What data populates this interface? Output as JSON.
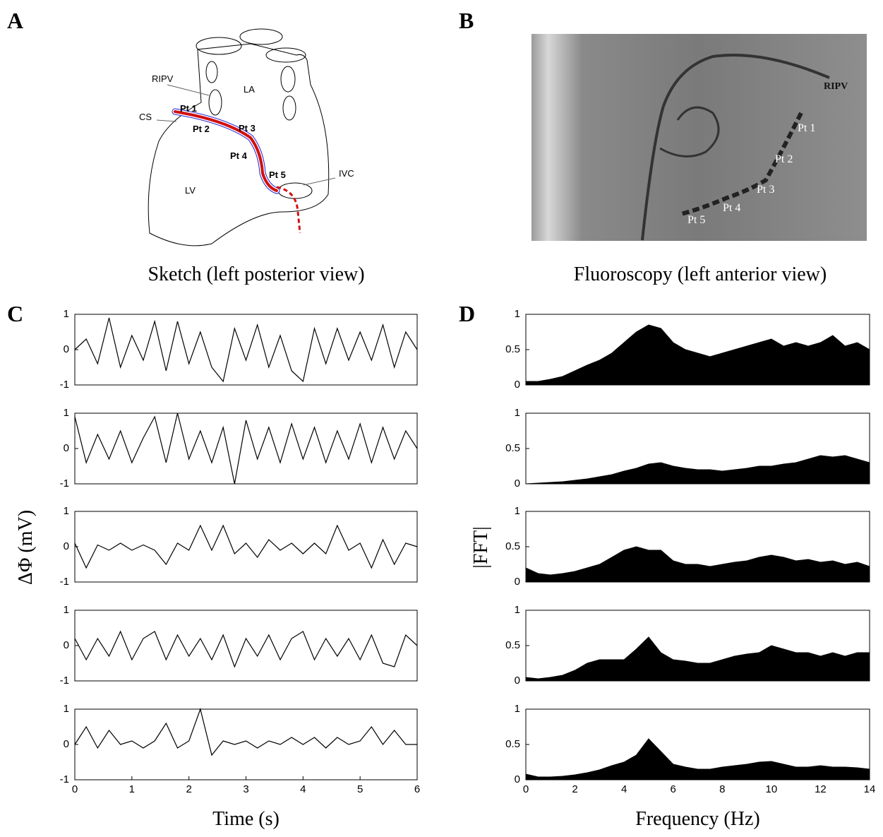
{
  "figure": {
    "panel_labels": [
      "A",
      "B",
      "C",
      "D"
    ],
    "sketch": {
      "caption": "Sketch (left posterior view)",
      "labels": [
        "RIPV",
        "LA",
        "CS",
        "Pt 1",
        "Pt 2",
        "Pt 3",
        "Pt 4",
        "Pt 5",
        "LV",
        "IVC"
      ]
    },
    "fluoroscopy": {
      "caption": "Fluoroscopy (left anterior view)",
      "labels": [
        "RIPV",
        "Pt 1",
        "Pt 2",
        "Pt 3",
        "Pt 4",
        "Pt 5"
      ]
    }
  },
  "chart_data": [
    {
      "type": "line",
      "x": [
        0,
        0.2,
        0.4,
        0.6,
        0.8,
        1,
        1.2,
        1.4,
        1.6,
        1.8,
        2,
        2.2,
        2.4,
        2.6,
        2.8,
        3,
        3.2,
        3.4,
        3.6,
        3.8,
        4,
        4.2,
        4.4,
        4.6,
        4.8,
        5,
        5.2,
        5.4,
        5.6,
        5.8,
        6
      ],
      "series": [
        {
          "color": "#000000",
          "values": [
            0,
            0.3,
            -0.4,
            0.9,
            -0.5,
            0.4,
            -0.3,
            0.8,
            -0.6,
            0.8,
            -0.4,
            0.5,
            -0.5,
            -0.9,
            0.6,
            -0.3,
            0.7,
            -0.5,
            0.4,
            -0.6,
            -0.9,
            0.6,
            -0.4,
            0.6,
            -0.3,
            0.5,
            -0.3,
            0.7,
            -0.5,
            0.5,
            0
          ]
        }
      ],
      "xlim": [
        0,
        6
      ],
      "ylim": [
        -1,
        1
      ],
      "yticks": [
        -1,
        0,
        1
      ]
    },
    {
      "type": "line",
      "x": [
        0,
        0.2,
        0.4,
        0.6,
        0.8,
        1,
        1.2,
        1.4,
        1.6,
        1.8,
        2,
        2.2,
        2.4,
        2.6,
        2.8,
        3,
        3.2,
        3.4,
        3.6,
        3.8,
        4,
        4.2,
        4.4,
        4.6,
        4.8,
        5,
        5.2,
        5.4,
        5.6,
        5.8,
        6
      ],
      "series": [
        {
          "color": "#000000",
          "values": [
            0.9,
            -0.4,
            0.4,
            -0.3,
            0.5,
            -0.4,
            0.3,
            0.9,
            -0.4,
            1,
            -0.3,
            0.5,
            -0.4,
            0.6,
            -1,
            0.8,
            -0.3,
            0.6,
            -0.4,
            0.7,
            -0.3,
            0.6,
            -0.4,
            0.5,
            -0.3,
            0.7,
            -0.4,
            0.6,
            -0.3,
            0.5,
            0
          ]
        }
      ],
      "xlim": [
        0,
        6
      ],
      "ylim": [
        -1,
        1
      ],
      "yticks": [
        -1,
        0,
        1
      ]
    },
    {
      "type": "line",
      "x": [
        0,
        0.2,
        0.4,
        0.6,
        0.8,
        1,
        1.2,
        1.4,
        1.6,
        1.8,
        2,
        2.2,
        2.4,
        2.6,
        2.8,
        3,
        3.2,
        3.4,
        3.6,
        3.8,
        4,
        4.2,
        4.4,
        4.6,
        4.8,
        5,
        5.2,
        5.4,
        5.6,
        5.8,
        6
      ],
      "series": [
        {
          "color": "#000000",
          "values": [
            0.1,
            -0.6,
            0.05,
            -0.1,
            0.1,
            -0.1,
            0.05,
            -0.1,
            -0.5,
            0.1,
            -0.1,
            0.6,
            -0.1,
            0.6,
            -0.2,
            0.1,
            -0.3,
            0.2,
            -0.1,
            0.1,
            -0.2,
            0.1,
            -0.2,
            0.6,
            -0.1,
            0.1,
            -0.6,
            0.2,
            -0.5,
            0.1,
            0
          ]
        }
      ],
      "xlim": [
        0,
        6
      ],
      "ylim": [
        -1,
        1
      ],
      "yticks": [
        -1,
        0,
        1
      ]
    },
    {
      "type": "line",
      "x": [
        0,
        0.2,
        0.4,
        0.6,
        0.8,
        1,
        1.2,
        1.4,
        1.6,
        1.8,
        2,
        2.2,
        2.4,
        2.6,
        2.8,
        3,
        3.2,
        3.4,
        3.6,
        3.8,
        4,
        4.2,
        4.4,
        4.6,
        4.8,
        5,
        5.2,
        5.4,
        5.6,
        5.8,
        6
      ],
      "series": [
        {
          "color": "#000000",
          "values": [
            0.2,
            -0.4,
            0.2,
            -0.3,
            0.4,
            -0.4,
            0.2,
            0.4,
            -0.4,
            0.3,
            -0.3,
            0.2,
            -0.4,
            0.3,
            -0.6,
            0.2,
            -0.3,
            0.3,
            -0.4,
            0.2,
            0.4,
            -0.4,
            0.2,
            -0.3,
            0.2,
            -0.4,
            0.3,
            -0.5,
            -0.6,
            0.3,
            0
          ]
        }
      ],
      "xlim": [
        0,
        6
      ],
      "ylim": [
        -1,
        1
      ],
      "yticks": [
        -1,
        0,
        1
      ]
    },
    {
      "type": "line",
      "x": [
        0,
        0.2,
        0.4,
        0.6,
        0.8,
        1,
        1.2,
        1.4,
        1.6,
        1.8,
        2,
        2.2,
        2.4,
        2.6,
        2.8,
        3,
        3.2,
        3.4,
        3.6,
        3.8,
        4,
        4.2,
        4.4,
        4.6,
        4.8,
        5,
        5.2,
        5.4,
        5.6,
        5.8,
        6
      ],
      "series": [
        {
          "color": "#000000",
          "values": [
            0,
            0.5,
            -0.1,
            0.4,
            0,
            0.1,
            -0.1,
            0.1,
            0.6,
            -0.1,
            0.1,
            1,
            -0.3,
            0.1,
            0,
            0.1,
            -0.1,
            0.1,
            0,
            0.2,
            0,
            0.2,
            -0.1,
            0.2,
            0,
            0.1,
            0.5,
            0,
            0.4,
            0,
            0
          ]
        }
      ],
      "xlim": [
        0,
        6
      ],
      "ylim": [
        -1,
        1
      ],
      "yticks": [
        -1,
        0,
        1
      ],
      "xticks": [
        0,
        1,
        2,
        3,
        4,
        5,
        6
      ],
      "xlabel": "Time (s)"
    },
    {
      "type": "area",
      "x": [
        0,
        0.5,
        1,
        1.5,
        2,
        2.5,
        3,
        3.5,
        4,
        4.5,
        5,
        5.5,
        6,
        6.5,
        7,
        7.5,
        8,
        8.5,
        9,
        9.5,
        10,
        10.5,
        11,
        11.5,
        12,
        12.5,
        13,
        13.5,
        14
      ],
      "series": [
        {
          "color": "#000000",
          "values": [
            0.05,
            0.05,
            0.08,
            0.12,
            0.2,
            0.28,
            0.35,
            0.45,
            0.6,
            0.75,
            0.85,
            0.8,
            0.6,
            0.5,
            0.45,
            0.4,
            0.45,
            0.5,
            0.55,
            0.6,
            0.65,
            0.55,
            0.6,
            0.55,
            0.6,
            0.7,
            0.55,
            0.6,
            0.5
          ]
        }
      ],
      "xlim": [
        0,
        14
      ],
      "ylim": [
        0,
        1
      ],
      "yticks": [
        0,
        0.5,
        1
      ]
    },
    {
      "type": "area",
      "x": [
        0,
        0.5,
        1,
        1.5,
        2,
        2.5,
        3,
        3.5,
        4,
        4.5,
        5,
        5.5,
        6,
        6.5,
        7,
        7.5,
        8,
        8.5,
        9,
        9.5,
        10,
        10.5,
        11,
        11.5,
        12,
        12.5,
        13,
        13.5,
        14
      ],
      "series": [
        {
          "color": "#000000",
          "values": [
            0,
            0.01,
            0.02,
            0.03,
            0.05,
            0.07,
            0.1,
            0.13,
            0.18,
            0.22,
            0.28,
            0.3,
            0.25,
            0.22,
            0.2,
            0.2,
            0.18,
            0.2,
            0.22,
            0.25,
            0.25,
            0.28,
            0.3,
            0.35,
            0.4,
            0.38,
            0.4,
            0.35,
            0.3
          ]
        }
      ],
      "xlim": [
        0,
        14
      ],
      "ylim": [
        0,
        1
      ],
      "yticks": [
        0,
        0.5,
        1
      ]
    },
    {
      "type": "area",
      "x": [
        0,
        0.5,
        1,
        1.5,
        2,
        2.5,
        3,
        3.5,
        4,
        4.5,
        5,
        5.5,
        6,
        6.5,
        7,
        7.5,
        8,
        8.5,
        9,
        9.5,
        10,
        10.5,
        11,
        11.5,
        12,
        12.5,
        13,
        13.5,
        14
      ],
      "series": [
        {
          "color": "#000000",
          "values": [
            0.2,
            0.12,
            0.1,
            0.12,
            0.15,
            0.2,
            0.25,
            0.35,
            0.45,
            0.5,
            0.45,
            0.45,
            0.3,
            0.25,
            0.25,
            0.22,
            0.25,
            0.28,
            0.3,
            0.35,
            0.38,
            0.35,
            0.3,
            0.32,
            0.28,
            0.3,
            0.25,
            0.28,
            0.22
          ]
        }
      ],
      "xlim": [
        0,
        14
      ],
      "ylim": [
        0,
        1
      ],
      "yticks": [
        0,
        0.5,
        1
      ]
    },
    {
      "type": "area",
      "x": [
        0,
        0.5,
        1,
        1.5,
        2,
        2.5,
        3,
        3.5,
        4,
        4.5,
        5,
        5.5,
        6,
        6.5,
        7,
        7.5,
        8,
        8.5,
        9,
        9.5,
        10,
        10.5,
        11,
        11.5,
        12,
        12.5,
        13,
        13.5,
        14
      ],
      "series": [
        {
          "color": "#000000",
          "values": [
            0.05,
            0.03,
            0.05,
            0.08,
            0.15,
            0.25,
            0.3,
            0.3,
            0.3,
            0.45,
            0.62,
            0.4,
            0.3,
            0.28,
            0.25,
            0.25,
            0.3,
            0.35,
            0.38,
            0.4,
            0.5,
            0.45,
            0.4,
            0.4,
            0.35,
            0.4,
            0.35,
            0.4,
            0.4
          ]
        }
      ],
      "xlim": [
        0,
        14
      ],
      "ylim": [
        0,
        1
      ],
      "yticks": [
        0,
        0.5,
        1
      ]
    },
    {
      "type": "area",
      "x": [
        0,
        0.5,
        1,
        1.5,
        2,
        2.5,
        3,
        3.5,
        4,
        4.5,
        5,
        5.5,
        6,
        6.5,
        7,
        7.5,
        8,
        8.5,
        9,
        9.5,
        10,
        10.5,
        11,
        11.5,
        12,
        12.5,
        13,
        13.5,
        14
      ],
      "series": [
        {
          "color": "#000000",
          "values": [
            0.08,
            0.04,
            0.04,
            0.05,
            0.07,
            0.1,
            0.14,
            0.2,
            0.25,
            0.35,
            0.58,
            0.4,
            0.22,
            0.18,
            0.15,
            0.15,
            0.18,
            0.2,
            0.22,
            0.25,
            0.26,
            0.22,
            0.18,
            0.18,
            0.2,
            0.18,
            0.18,
            0.17,
            0.15
          ]
        }
      ],
      "xlim": [
        0,
        14
      ],
      "ylim": [
        0,
        1
      ],
      "yticks": [
        0,
        0.5,
        1
      ],
      "xticks": [
        0,
        2,
        4,
        6,
        8,
        10,
        12,
        14
      ],
      "xlabel": "Frequency (Hz)"
    }
  ],
  "axis_labels": {
    "left_y": "ΔΦ (mV)",
    "right_y": "|FFT|"
  }
}
